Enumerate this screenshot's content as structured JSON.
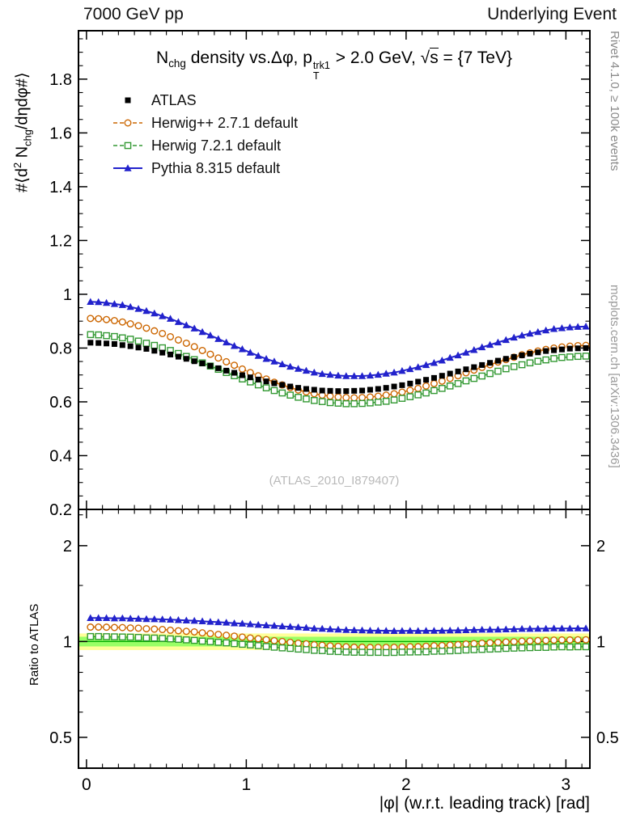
{
  "header": {
    "left": "7000 GeV pp",
    "right": "Underlying Event"
  },
  "side_notes": {
    "top": "Rivet 4.1.0, ≥ 100k events",
    "bottom": "mcplots.cern.ch [arXiv:1306.3436]"
  },
  "watermark": "(ATLAS_2010_I879407)",
  "title_segments": {
    "n": "N",
    "nsub": "chg",
    "mid": " density vs.Δφ, p",
    "psup": "trk1",
    "psub": "T",
    "gt": " > 2.0 GeV, ",
    "sqrt": "√",
    "sqrtarg": "s",
    "tail": " = {7 TeV}"
  },
  "ylabel_segments": {
    "a": "#⟨d",
    "sup": "2",
    "b": " N",
    "sub": "chg",
    "c": "/dηdφ#⟩"
  },
  "axes": {
    "ratio_label": "Ratio to ATLAS",
    "x_label": "|φ| (w.r.t. leading track) [rad]"
  },
  "chart_data": {
    "type": "line",
    "title": "N_chg density vs.Δφ, p_T^trk1 > 2.0 GeV, √s = {7 TeV}",
    "xlabel": "|φ| (w.r.t. leading track) [rad]",
    "ylabel": "#⟨d² N_chg/dηdφ#⟩",
    "ratio_ylabel": "Ratio to ATLAS",
    "xlim": [
      -0.05,
      3.15
    ],
    "ylim_main": [
      0.2,
      1.98
    ],
    "ylim_ratio": [
      0.4,
      2.6
    ],
    "ratio_scale": "log",
    "grid": false,
    "legend_position": "top-left",
    "x_ticks": [
      0,
      1,
      2,
      3
    ],
    "y_ticks_main": [
      0.2,
      0.4,
      0.6,
      0.8,
      1,
      1.2,
      1.4,
      1.6,
      1.8
    ],
    "ratio_ticks": [
      0.5,
      1,
      2
    ],
    "ratio_minor_ticks": [
      0.4,
      0.6,
      0.7,
      0.8,
      0.9,
      1.5,
      2.5
    ],
    "band": {
      "yellow": [
        0.94,
        1.06
      ],
      "green": [
        0.965,
        1.035
      ],
      "center": 1,
      "yellow_color": "#ffff99",
      "green_color": "#99ff66",
      "center_line_color": "#00aa00"
    },
    "ratio_reference": "ATLAS",
    "x": [
      0.025,
      0.075,
      0.125,
      0.175,
      0.225,
      0.275,
      0.325,
      0.375,
      0.425,
      0.475,
      0.525,
      0.575,
      0.625,
      0.675,
      0.725,
      0.775,
      0.825,
      0.875,
      0.925,
      0.975,
      1.025,
      1.075,
      1.125,
      1.175,
      1.225,
      1.275,
      1.325,
      1.375,
      1.425,
      1.475,
      1.525,
      1.575,
      1.625,
      1.675,
      1.725,
      1.775,
      1.825,
      1.875,
      1.925,
      1.975,
      2.025,
      2.075,
      2.125,
      2.175,
      2.225,
      2.275,
      2.325,
      2.375,
      2.425,
      2.475,
      2.525,
      2.575,
      2.625,
      2.675,
      2.725,
      2.775,
      2.825,
      2.875,
      2.925,
      2.975,
      3.025,
      3.075,
      3.125
    ],
    "series": [
      {
        "name": "ATLAS",
        "color": "#000000",
        "marker": "square-filled",
        "line": "none",
        "line_width": 1,
        "values": [
          0.82,
          0.819,
          0.817,
          0.815,
          0.811,
          0.807,
          0.802,
          0.797,
          0.79,
          0.783,
          0.776,
          0.768,
          0.76,
          0.751,
          0.743,
          0.734,
          0.725,
          0.716,
          0.708,
          0.699,
          0.691,
          0.683,
          0.676,
          0.669,
          0.663,
          0.657,
          0.652,
          0.648,
          0.645,
          0.642,
          0.641,
          0.64,
          0.64,
          0.641,
          0.642,
          0.645,
          0.648,
          0.652,
          0.657,
          0.662,
          0.668,
          0.675,
          0.682,
          0.689,
          0.697,
          0.705,
          0.713,
          0.721,
          0.729,
          0.737,
          0.745,
          0.753,
          0.76,
          0.767,
          0.773,
          0.779,
          0.784,
          0.789,
          0.792,
          0.795,
          0.798,
          0.799,
          0.8
        ]
      },
      {
        "name": "Herwig++ 2.7.1 default",
        "color": "#cc6600",
        "marker": "circle-open",
        "line": "dashed",
        "line_width": 1.5,
        "values": [
          0.91,
          0.909,
          0.906,
          0.902,
          0.897,
          0.89,
          0.883,
          0.874,
          0.864,
          0.854,
          0.842,
          0.83,
          0.818,
          0.805,
          0.791,
          0.777,
          0.763,
          0.749,
          0.736,
          0.722,
          0.709,
          0.697,
          0.685,
          0.673,
          0.663,
          0.653,
          0.644,
          0.637,
          0.63,
          0.625,
          0.621,
          0.618,
          0.616,
          0.615,
          0.616,
          0.618,
          0.621,
          0.625,
          0.63,
          0.636,
          0.643,
          0.65,
          0.659,
          0.668,
          0.677,
          0.687,
          0.697,
          0.708,
          0.718,
          0.728,
          0.738,
          0.748,
          0.757,
          0.766,
          0.775,
          0.782,
          0.789,
          0.795,
          0.8,
          0.804,
          0.807,
          0.809,
          0.81
        ]
      },
      {
        "name": "Herwig 7.2.1 default",
        "color": "#339933",
        "marker": "square-open",
        "line": "dashed",
        "line_width": 1.5,
        "values": [
          0.85,
          0.849,
          0.846,
          0.843,
          0.838,
          0.833,
          0.826,
          0.818,
          0.81,
          0.801,
          0.791,
          0.78,
          0.769,
          0.757,
          0.745,
          0.733,
          0.721,
          0.709,
          0.697,
          0.685,
          0.674,
          0.663,
          0.652,
          0.642,
          0.633,
          0.625,
          0.617,
          0.611,
          0.605,
          0.601,
          0.597,
          0.595,
          0.593,
          0.593,
          0.594,
          0.596,
          0.599,
          0.602,
          0.607,
          0.613,
          0.619,
          0.626,
          0.633,
          0.642,
          0.65,
          0.659,
          0.668,
          0.678,
          0.687,
          0.696,
          0.705,
          0.714,
          0.723,
          0.731,
          0.738,
          0.745,
          0.751,
          0.756,
          0.761,
          0.765,
          0.767,
          0.769,
          0.77
        ]
      },
      {
        "name": "Pythia 8.315 default",
        "color": "#2222cc",
        "marker": "triangle-filled",
        "line": "solid",
        "line_width": 2,
        "values": [
          0.972,
          0.971,
          0.968,
          0.964,
          0.96,
          0.953,
          0.946,
          0.938,
          0.929,
          0.919,
          0.909,
          0.897,
          0.885,
          0.873,
          0.86,
          0.847,
          0.834,
          0.821,
          0.808,
          0.796,
          0.783,
          0.771,
          0.76,
          0.75,
          0.74,
          0.731,
          0.723,
          0.716,
          0.709,
          0.704,
          0.701,
          0.698,
          0.696,
          0.696,
          0.696,
          0.698,
          0.701,
          0.705,
          0.709,
          0.715,
          0.722,
          0.729,
          0.737,
          0.745,
          0.754,
          0.764,
          0.773,
          0.783,
          0.793,
          0.803,
          0.812,
          0.821,
          0.83,
          0.839,
          0.847,
          0.854,
          0.86,
          0.866,
          0.871,
          0.874,
          0.877,
          0.879,
          0.88
        ]
      }
    ]
  }
}
